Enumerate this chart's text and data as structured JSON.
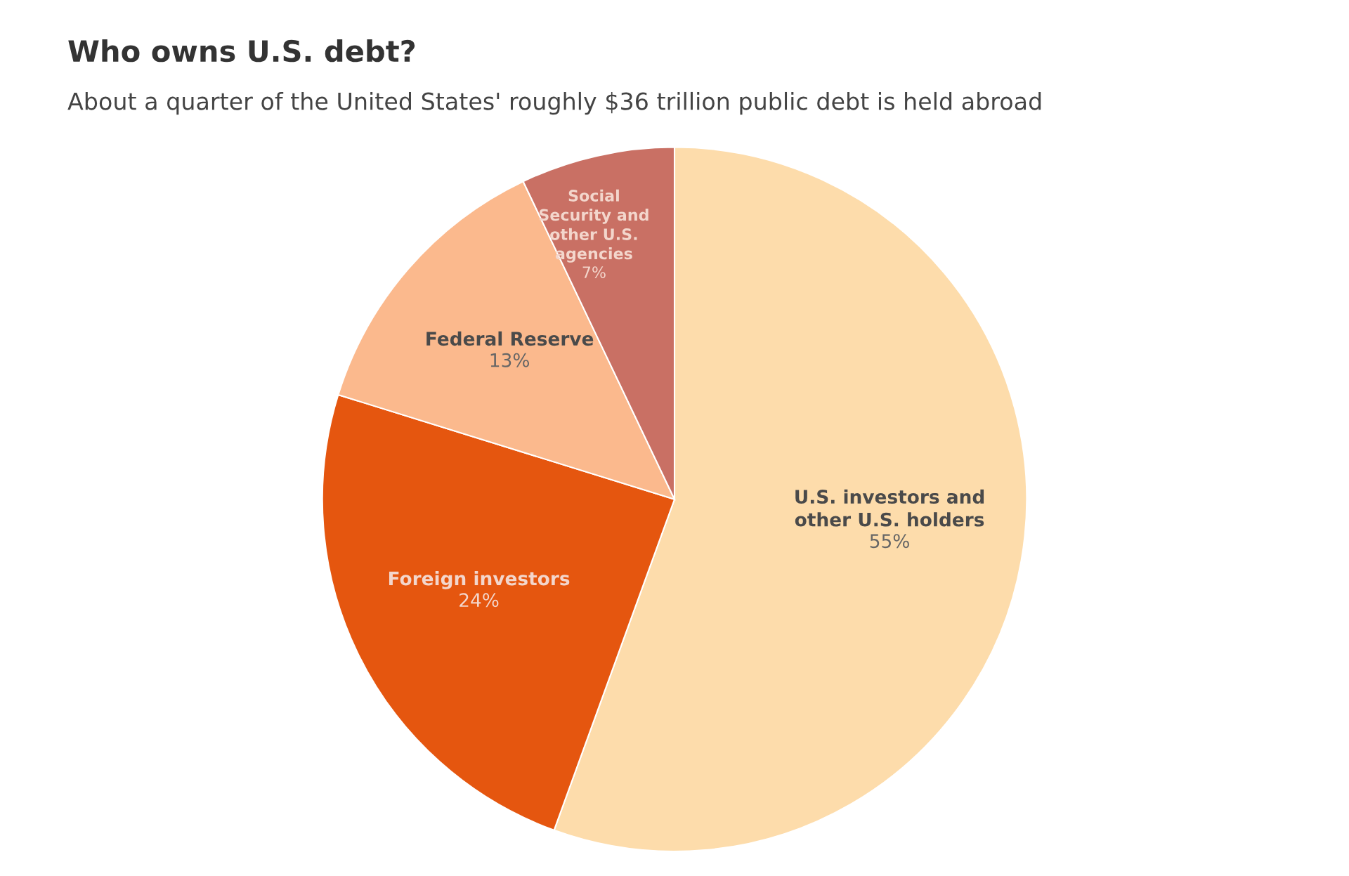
{
  "chart_data": {
    "type": "pie",
    "title": "Who owns U.S. debt?",
    "subtitle": "About a quarter of the United States' roughly $36 trillion public debt is held abroad",
    "categories": [
      "U.S. investors and\nother U.S. holders",
      "Foreign investors",
      "Federal Reserve",
      "Social\nSecurity and\nother U.S.\nagencies"
    ],
    "values": [
      55,
      24,
      13,
      7
    ],
    "colors": [
      "#fddcab",
      "#e5560f",
      "#fbb98d",
      "#c97064"
    ],
    "value_labels": [
      "55%",
      "24%",
      "13%",
      "7%"
    ]
  }
}
